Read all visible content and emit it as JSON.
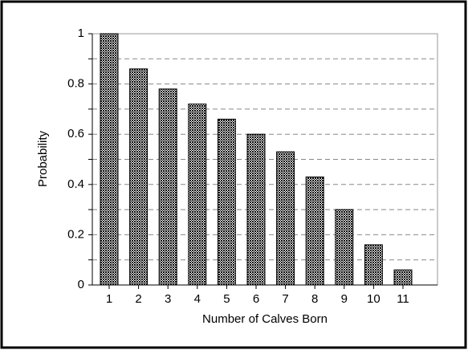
{
  "chart_data": {
    "type": "bar",
    "x_label": "Number of Calves Born",
    "y_label": "Probability",
    "categories": [
      "1",
      "2",
      "3",
      "4",
      "5",
      "6",
      "7",
      "8",
      "9",
      "10",
      "11"
    ],
    "values": [
      1,
      0.86,
      0.78,
      0.72,
      0.66,
      0.6,
      0.53,
      0.43,
      0.3,
      0.16,
      0.06
    ],
    "color": "#7a7a7a",
    "ylim": [
      0,
      1
    ],
    "yticks": [
      0,
      0.2,
      0.4,
      0.6,
      0.8,
      1
    ],
    "minor_yticks": [
      0.1,
      0.3,
      0.5,
      0.7,
      0.9
    ],
    "grid": true
  }
}
